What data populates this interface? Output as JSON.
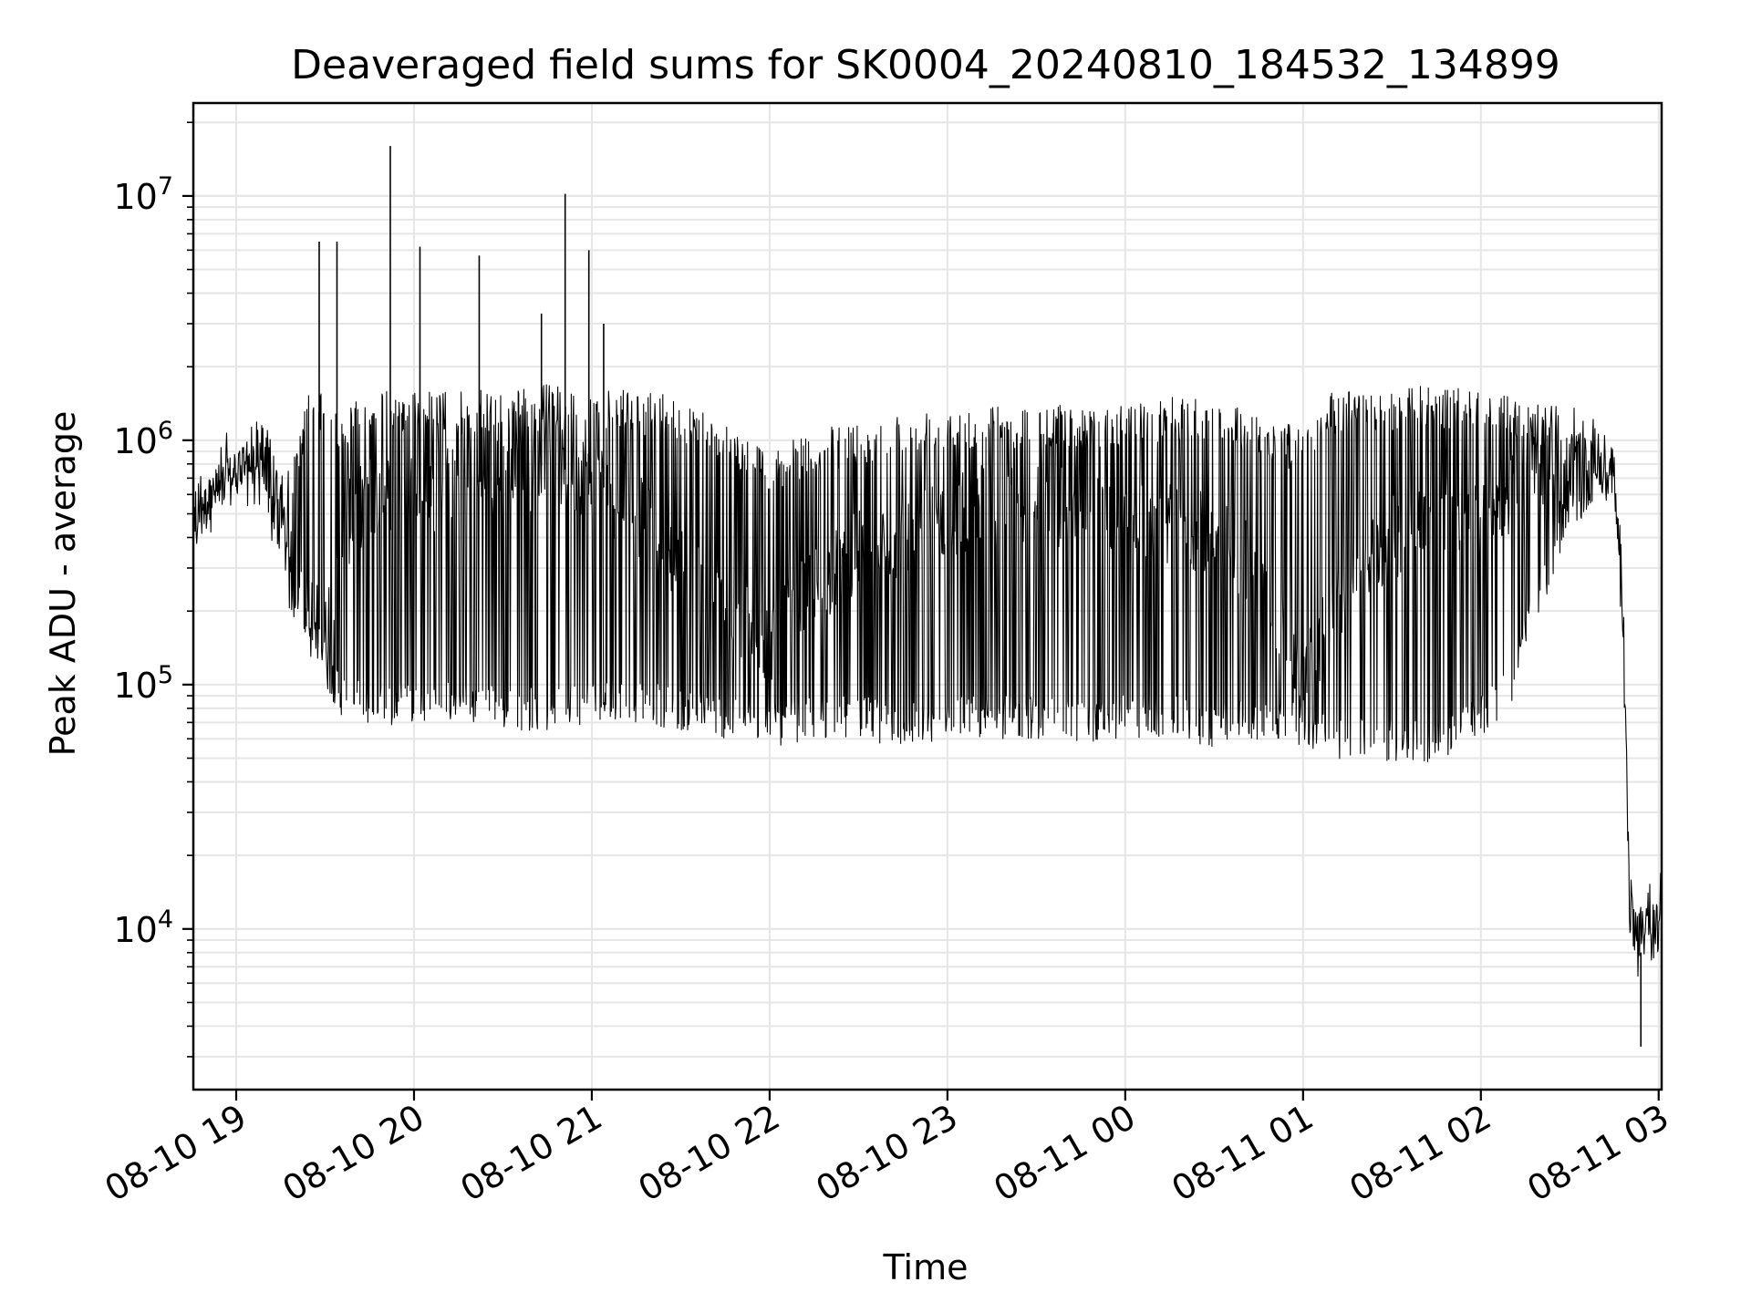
{
  "chart_data": {
    "type": "line",
    "title": "Deaveraged field sums for SK0004_20240810_184532_134899",
    "xlabel": "Time",
    "ylabel": "Peak ADU - average",
    "yscale": "log",
    "ylim": [
      2200,
      24000000
    ],
    "xlim": [
      "2024-08-10 18:45:32",
      "2024-08-11 03:01:00"
    ],
    "x_ticks": [
      {
        "t": "2024-08-10 19:00",
        "label": "08-10 19"
      },
      {
        "t": "2024-08-10 20:00",
        "label": "08-10 20"
      },
      {
        "t": "2024-08-10 21:00",
        "label": "08-10 21"
      },
      {
        "t": "2024-08-10 22:00",
        "label": "08-10 22"
      },
      {
        "t": "2024-08-10 23:00",
        "label": "08-10 23"
      },
      {
        "t": "2024-08-11 00:00",
        "label": "08-11 00"
      },
      {
        "t": "2024-08-11 01:00",
        "label": "08-11 01"
      },
      {
        "t": "2024-08-11 02:00",
        "label": "08-11 02"
      },
      {
        "t": "2024-08-11 03:00",
        "label": "08-11 03"
      }
    ],
    "y_major_ticks": [
      {
        "value": 10000,
        "base": "10",
        "exp": "4"
      },
      {
        "value": 100000,
        "base": "10",
        "exp": "5"
      },
      {
        "value": 1000000,
        "base": "10",
        "exp": "6"
      },
      {
        "value": 10000000,
        "base": "10",
        "exp": "7"
      }
    ],
    "grid": true,
    "line_color": "#000000",
    "grid_color": "#e6e6e6",
    "series": [
      {
        "x": [
          "2024-08-10 18:45:32",
          "2024-08-10 18:50",
          "2024-08-10 18:55",
          "2024-08-10 19:00",
          "2024-08-10 19:05",
          "2024-08-10 19:10",
          "2024-08-10 19:15",
          "2024-08-10 19:20",
          "2024-08-10 19:25",
          "2024-08-10 19:30",
          "2024-08-10 19:35",
          "2024-08-10 19:40",
          "2024-08-10 19:45",
          "2024-08-10 19:50",
          "2024-08-10 19:55",
          "2024-08-10 20:00",
          "2024-08-10 20:15",
          "2024-08-10 20:30",
          "2024-08-10 20:45",
          "2024-08-10 21:00",
          "2024-08-10 21:15",
          "2024-08-10 21:30",
          "2024-08-10 21:45",
          "2024-08-10 22:00",
          "2024-08-10 22:15",
          "2024-08-10 22:30",
          "2024-08-10 22:45",
          "2024-08-10 23:00",
          "2024-08-10 23:15",
          "2024-08-10 23:30",
          "2024-08-10 23:45",
          "2024-08-11 00:00",
          "2024-08-11 00:15",
          "2024-08-11 00:30",
          "2024-08-11 00:45",
          "2024-08-11 01:00",
          "2024-08-11 01:10",
          "2024-08-11 01:20",
          "2024-08-11 01:30",
          "2024-08-11 01:45",
          "2024-08-11 02:00",
          "2024-08-11 02:10",
          "2024-08-11 02:20",
          "2024-08-11 02:30",
          "2024-08-11 02:40",
          "2024-08-11 02:45",
          "2024-08-11 02:48",
          "2024-08-11 02:50",
          "2024-08-11 02:52",
          "2024-08-11 02:54",
          "2024-08-11 02:56",
          "2024-08-11 02:58",
          "2024-08-11 03:00"
        ],
        "upper": [
          600000,
          700000,
          800000,
          900000,
          1100000,
          1200000,
          700000,
          900000,
          1700000,
          1500000,
          1300000,
          1500000,
          1600000,
          1600000,
          1600000,
          1600000,
          1600000,
          1600000,
          1700000,
          1600000,
          1600000,
          1500000,
          1200000,
          900000,
          1100000,
          1200000,
          1300000,
          1400000,
          1400000,
          1400000,
          1400000,
          1400000,
          1500000,
          1500000,
          1300000,
          1100000,
          1600000,
          1600000,
          1600000,
          1700000,
          1600000,
          1500000,
          1400000,
          1400000,
          1200000,
          900000,
          300000,
          20000,
          14000,
          13000,
          13000,
          14000,
          14000
        ],
        "lower": [
          350000,
          450000,
          550000,
          600000,
          650000,
          450000,
          280000,
          160000,
          130000,
          100000,
          75000,
          70000,
          65000,
          65000,
          70000,
          70000,
          70000,
          65000,
          65000,
          70000,
          70000,
          65000,
          60000,
          55000,
          60000,
          60000,
          55000,
          60000,
          60000,
          60000,
          58000,
          60000,
          60000,
          55000,
          60000,
          55000,
          50000,
          48000,
          48000,
          48000,
          60000,
          80000,
          200000,
          400000,
          600000,
          500000,
          120000,
          10000,
          7000,
          6000,
          7500,
          8000,
          9000
        ],
        "mid": [
          450000,
          600000,
          700000,
          750000,
          800000,
          800000,
          450000,
          300000,
          200000,
          150000,
          400000,
          500000,
          600000,
          600000,
          700000,
          600000,
          650000,
          700000,
          800000,
          700000,
          500000,
          300000,
          200000,
          150000,
          250000,
          350000,
          400000,
          500000,
          550000,
          550000,
          500000,
          450000,
          450000,
          400000,
          300000,
          100000,
          200000,
          300000,
          400000,
          500000,
          500000,
          600000,
          700000,
          800000,
          850000,
          700000,
          200000,
          16000,
          9000,
          8000,
          10000,
          11000,
          12000
        ]
      }
    ],
    "spikes": [
      {
        "t": "2024-08-10 19:28",
        "value": 6500000
      },
      {
        "t": "2024-08-10 19:34",
        "value": 6500000
      },
      {
        "t": "2024-08-10 19:52",
        "value": 16000000
      },
      {
        "t": "2024-08-10 20:02",
        "value": 6200000
      },
      {
        "t": "2024-08-10 20:22",
        "value": 5700000
      },
      {
        "t": "2024-08-10 20:43",
        "value": 3300000
      },
      {
        "t": "2024-08-10 20:51",
        "value": 10200000
      },
      {
        "t": "2024-08-10 20:59",
        "value": 6000000
      },
      {
        "t": "2024-08-10 21:04",
        "value": 3000000
      },
      {
        "t": "2024-08-11 02:54",
        "value": 3300
      }
    ]
  }
}
